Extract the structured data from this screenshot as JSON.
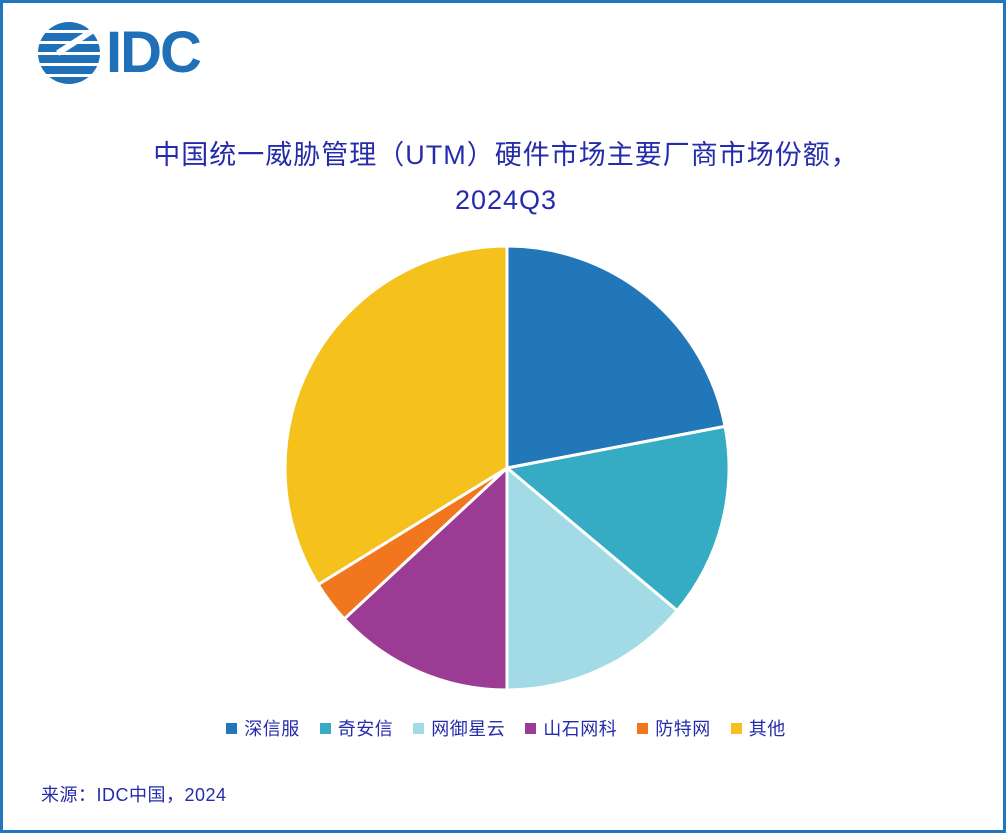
{
  "logo": {
    "text": "IDC"
  },
  "title": {
    "line1": "中国统一威胁管理（UTM）硬件市场主要厂商市场份额，",
    "line2": "2024Q3"
  },
  "source": "来源：IDC中国，2024",
  "colors": {
    "border": "#2176BE",
    "logo_blue": "#2070B8",
    "title_text": "#252CAC",
    "slice_separator": "#FFFFFF"
  },
  "chart_data": {
    "type": "pie",
    "title": "中国统一威胁管理（UTM）硬件市场主要厂商市场份额，2024Q3",
    "labels": [
      "深信服",
      "奇安信",
      "网御星云",
      "山石网科",
      "防特网",
      "其他"
    ],
    "values": [
      22.0,
      14.1,
      13.9,
      13.1,
      3.1,
      33.8
    ],
    "unit": "percent",
    "colors": [
      "#2277B8",
      "#35ABC4",
      "#A2DAE6",
      "#9C3B94",
      "#F1761E",
      "#F4C11D"
    ],
    "start_angle_deg": 0,
    "direction": "clockwise",
    "legend_position": "bottom",
    "source_note": "来源：IDC中国，2024"
  }
}
